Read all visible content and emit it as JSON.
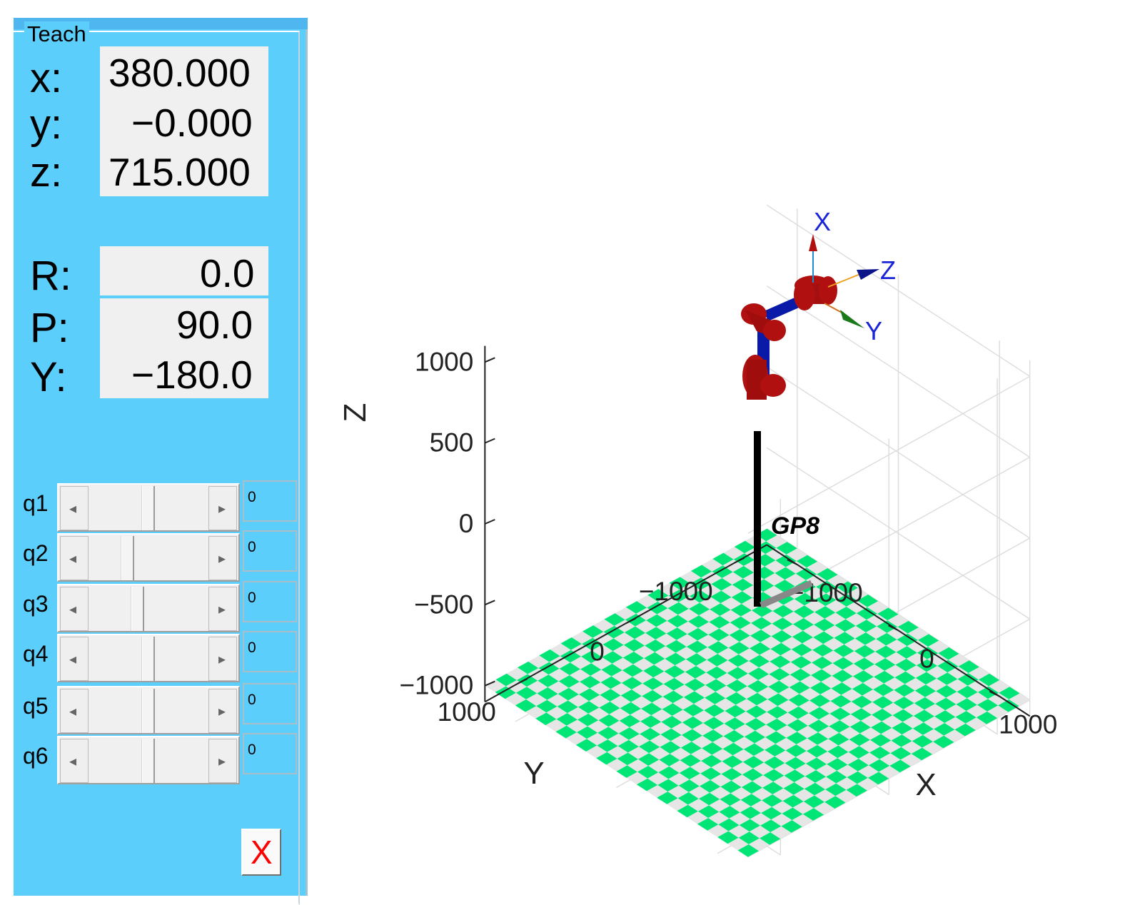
{
  "panel": {
    "title": "Teach",
    "position": [
      {
        "label": "x:",
        "value": "380.000"
      },
      {
        "label": "y:",
        "value": "−0.000"
      },
      {
        "label": "z:",
        "value": "715.000"
      }
    ],
    "orientation": [
      {
        "label": "R:",
        "value": "0.0"
      },
      {
        "label": "P:",
        "value": "90.0"
      },
      {
        "label": "Y:",
        "value": "−180.0"
      }
    ],
    "joints": [
      {
        "label": "q1",
        "value": "0"
      },
      {
        "label": "q2",
        "value": "0"
      },
      {
        "label": "q3",
        "value": "0"
      },
      {
        "label": "q4",
        "value": "0"
      },
      {
        "label": "q5",
        "value": "0"
      },
      {
        "label": "q6",
        "value": "0"
      }
    ],
    "joint_slider_levels": [
      0.5,
      0.3,
      0.4,
      0.5,
      0.5,
      0.5
    ],
    "close_label": "X",
    "colors": {
      "panel_bg": "#5bcefb",
      "close_x": "#ff0000"
    },
    "icons": {
      "left": "left-arrow-icon",
      "right": "right-arrow-icon"
    }
  },
  "plot": {
    "z_label": "Z",
    "y_label": "Y",
    "x_label": "X",
    "z_ticks": [
      "1000",
      "500",
      "0",
      "−500",
      "−1000"
    ],
    "y_ticks": [
      "1000",
      "0",
      "−1000"
    ],
    "x_ticks": [
      "−1000",
      "0",
      "1000"
    ],
    "robot_name": "GP8",
    "frame_labels": {
      "x": "X",
      "y": "Y",
      "z": "Z"
    },
    "colors": {
      "floor_a": "#00e676",
      "floor_b": "#e6e6e6",
      "link_red": "#b01010",
      "link_blue": "#0a1aa8",
      "frame_blue": "#1a24d6"
    }
  }
}
